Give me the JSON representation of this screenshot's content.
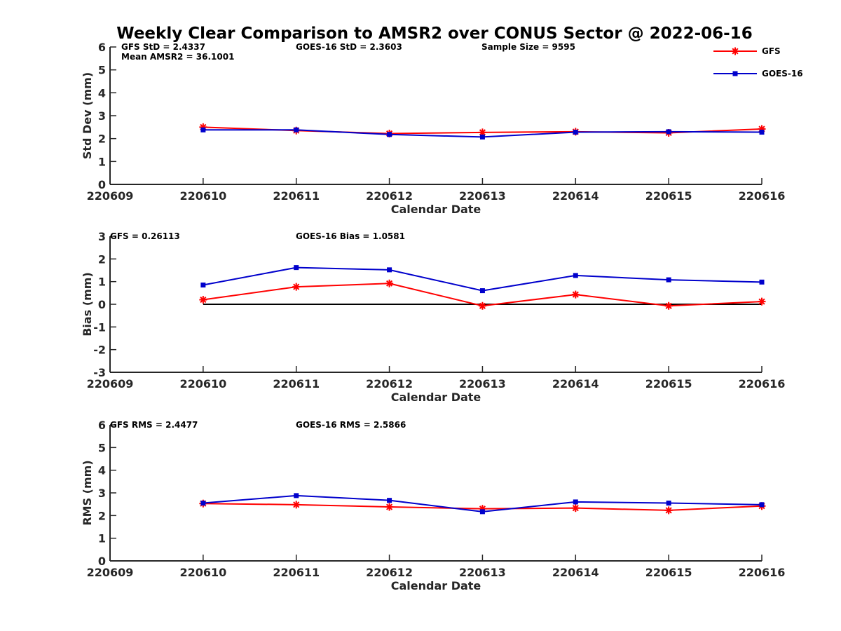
{
  "colors": {
    "gfs": "#ff0000",
    "goes": "#0000cc",
    "axis": "#262626",
    "zero_line": "#000000"
  },
  "chart_data": [
    {
      "type": "line",
      "title": "Weekly Clear Comparison to AMSR2 over CONUS Sector @ 2022-06-16",
      "xlabel": "Calendar Date",
      "ylabel": "Std Dev (mm)",
      "x": [
        "220609",
        "220610",
        "220611",
        "220612",
        "220613",
        "220614",
        "220615",
        "220616"
      ],
      "ylim": [
        0,
        6
      ],
      "yticks": [
        "0",
        "1",
        "2",
        "3",
        "4",
        "5",
        "6"
      ],
      "annotations": [
        "GFS StD = 2.4337",
        "GOES-16 StD = 2.3603",
        "Sample Size = 9595",
        "Mean AMSR2 = 36.1001"
      ],
      "legend": {
        "position": "top-right",
        "entries": [
          "GFS",
          "GOES-16"
        ]
      },
      "series": [
        {
          "name": "GFS",
          "marker": "asterisk",
          "color": "#ff0000",
          "values": [
            null,
            2.5,
            2.35,
            2.22,
            2.27,
            2.3,
            2.25,
            2.42
          ]
        },
        {
          "name": "GOES-16",
          "marker": "square",
          "color": "#0000cc",
          "values": [
            null,
            2.38,
            2.38,
            2.18,
            2.07,
            2.28,
            2.3,
            2.28
          ]
        }
      ]
    },
    {
      "type": "line",
      "xlabel": "Calendar Date",
      "ylabel": "Bias (mm)",
      "x": [
        "220609",
        "220610",
        "220611",
        "220612",
        "220613",
        "220614",
        "220615",
        "220616"
      ],
      "ylim": [
        -3,
        3
      ],
      "yticks": [
        "-3",
        "-2",
        "-1",
        "0",
        "1",
        "2",
        "3"
      ],
      "reference_line": 0,
      "annotations": [
        "GFS = 0.26113",
        "GOES-16 Bias  = 1.0581"
      ],
      "series": [
        {
          "name": "GFS",
          "marker": "asterisk",
          "color": "#ff0000",
          "values": [
            null,
            0.2,
            0.77,
            0.92,
            -0.07,
            0.43,
            -0.07,
            0.12
          ]
        },
        {
          "name": "GOES-16",
          "marker": "square",
          "color": "#0000cc",
          "values": [
            null,
            0.85,
            1.62,
            1.52,
            0.6,
            1.27,
            1.08,
            0.98
          ]
        }
      ]
    },
    {
      "type": "line",
      "xlabel": "Calendar Date",
      "ylabel": "RMS (mm)",
      "x": [
        "220609",
        "220610",
        "220611",
        "220612",
        "220613",
        "220614",
        "220615",
        "220616"
      ],
      "ylim": [
        0,
        6
      ],
      "yticks": [
        "0",
        "1",
        "2",
        "3",
        "4",
        "5",
        "6"
      ],
      "annotations": [
        "GFS RMS = 2.4477",
        "GOES-16 RMS = 2.5866"
      ],
      "series": [
        {
          "name": "GFS",
          "marker": "asterisk",
          "color": "#ff0000",
          "values": [
            null,
            2.53,
            2.48,
            2.38,
            2.3,
            2.33,
            2.23,
            2.42
          ]
        },
        {
          "name": "GOES-16",
          "marker": "square",
          "color": "#0000cc",
          "values": [
            null,
            2.55,
            2.88,
            2.67,
            2.17,
            2.6,
            2.55,
            2.48
          ]
        }
      ]
    }
  ]
}
